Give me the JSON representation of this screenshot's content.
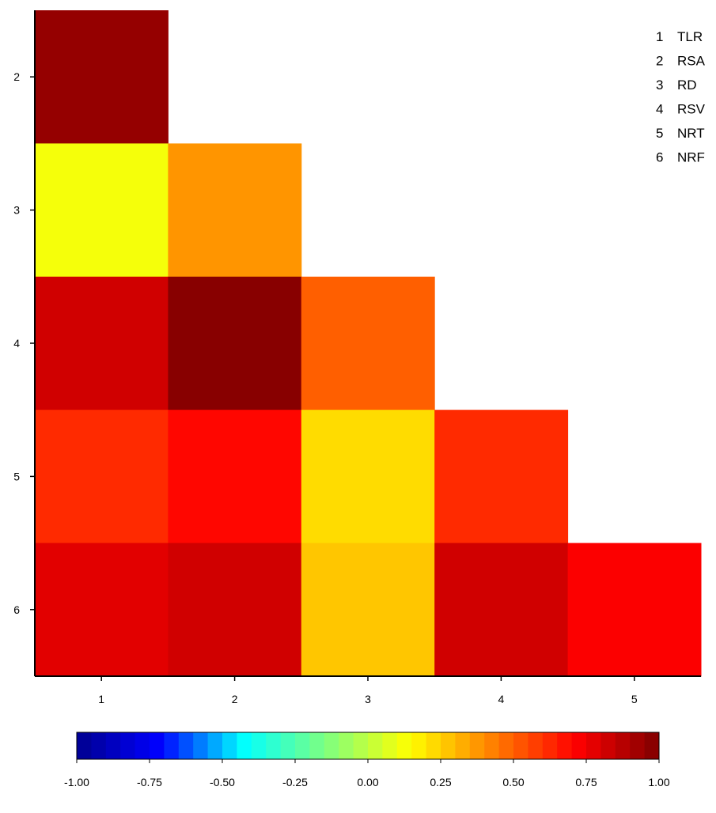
{
  "chart_data": {
    "type": "heatmap",
    "title": "",
    "xlabel": "",
    "ylabel": "",
    "x_categories": [
      "1",
      "2",
      "3",
      "4",
      "5"
    ],
    "y_categories": [
      "2",
      "3",
      "4",
      "5",
      "6"
    ],
    "cells": [
      {
        "x": "1",
        "y": "2",
        "value": 0.95
      },
      {
        "x": "1",
        "y": "3",
        "value": 0.12
      },
      {
        "x": "2",
        "y": "3",
        "value": 0.38
      },
      {
        "x": "1",
        "y": "4",
        "value": 0.82
      },
      {
        "x": "2",
        "y": "4",
        "value": 0.98
      },
      {
        "x": "3",
        "y": "4",
        "value": 0.5
      },
      {
        "x": "1",
        "y": "5",
        "value": 0.62
      },
      {
        "x": "2",
        "y": "5",
        "value": 0.7
      },
      {
        "x": "3",
        "y": "5",
        "value": 0.22
      },
      {
        "x": "4",
        "y": "5",
        "value": 0.62
      },
      {
        "x": "1",
        "y": "6",
        "value": 0.78
      },
      {
        "x": "2",
        "y": "6",
        "value": 0.82
      },
      {
        "x": "3",
        "y": "6",
        "value": 0.27
      },
      {
        "x": "4",
        "y": "6",
        "value": 0.82
      },
      {
        "x": "5",
        "y": "6",
        "value": 0.72
      }
    ],
    "legend": [
      {
        "key": "1",
        "label": "TLR"
      },
      {
        "key": "2",
        "label": "RSA"
      },
      {
        "key": "3",
        "label": "RD"
      },
      {
        "key": "4",
        "label": "RSV"
      },
      {
        "key": "5",
        "label": "NRT"
      },
      {
        "key": "6",
        "label": "NRF"
      }
    ],
    "legend_position": "top-right",
    "colorbar": {
      "range": [
        -1.0,
        1.0
      ],
      "ticks": [
        "-1.00",
        "-0.75",
        "-0.50",
        "-0.25",
        "0.00",
        "0.25",
        "0.50",
        "0.75",
        "1.00"
      ],
      "position": "bottom",
      "levels": 40
    },
    "colormap": [
      "#00008f",
      "#0000ff",
      "#00ffff",
      "#7fff7f",
      "#ffff00",
      "#ff7f00",
      "#ff0000",
      "#7f0000"
    ],
    "grid": false
  }
}
